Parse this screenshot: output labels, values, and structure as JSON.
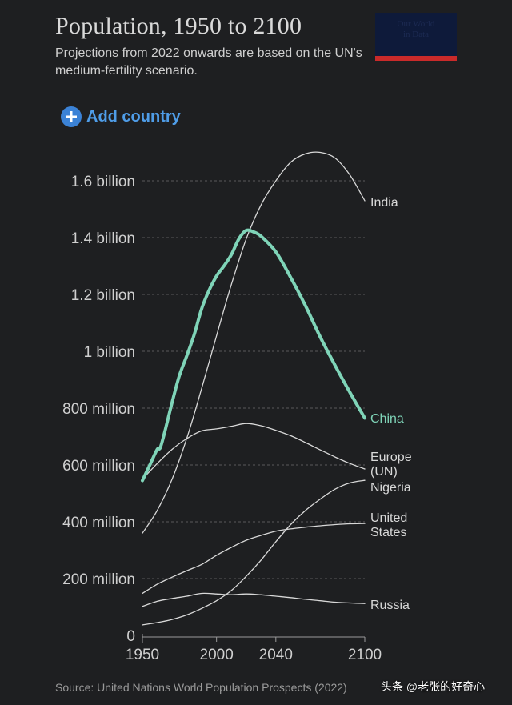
{
  "header": {
    "title": "Population, 1950 to 2100",
    "subtitle": "Projections from 2022 onwards are based on the UN's medium-fertility scenario."
  },
  "logo": {
    "text": "Our World in Data",
    "bg_color": "#0e1a3a",
    "bar_color": "#c92a2a"
  },
  "controls": {
    "add_country_label": "Add country",
    "icon": "plus-circle-icon",
    "color": "#4f9de8"
  },
  "footer": {
    "source": "Source: United Nations World Population Prospects (2022)",
    "watermark": "头条 @老张的好奇心"
  },
  "chart_data": {
    "type": "line",
    "title": "Population, 1950 to 2100",
    "xlabel": "",
    "ylabel": "",
    "xlim": [
      1950,
      2100
    ],
    "ylim": [
      0,
      1700000000
    ],
    "x_ticks": [
      1950,
      2000,
      2040,
      2100
    ],
    "x_tick_labels": [
      "1950",
      "2000",
      "2040",
      "2100"
    ],
    "y_ticks": [
      0,
      200000000,
      400000000,
      600000000,
      800000000,
      1000000000,
      1200000000,
      1400000000,
      1600000000
    ],
    "y_tick_labels": [
      "0",
      "200 million",
      "400 million",
      "600 million",
      "800 million",
      "1 billion",
      "1.2 billion",
      "1.4 billion",
      "1.6 billion"
    ],
    "grid": "horizontal dashed",
    "line_color": "#d8d8d8",
    "highlight_color": "#7fd4b8",
    "series": [
      {
        "name": "India",
        "label_lines": [
          "India"
        ],
        "highlight": false,
        "points": [
          [
            1950,
            360000000
          ],
          [
            1960,
            440000000
          ],
          [
            1970,
            550000000
          ],
          [
            1980,
            695000000
          ],
          [
            1990,
            870000000
          ],
          [
            2000,
            1055000000
          ],
          [
            2010,
            1235000000
          ],
          [
            2020,
            1395000000
          ],
          [
            2030,
            1515000000
          ],
          [
            2040,
            1600000000
          ],
          [
            2050,
            1665000000
          ],
          [
            2060,
            1695000000
          ],
          [
            2070,
            1700000000
          ],
          [
            2080,
            1680000000
          ],
          [
            2090,
            1620000000
          ],
          [
            2100,
            1530000000
          ]
        ]
      },
      {
        "name": "China",
        "label_lines": [
          "China"
        ],
        "highlight": true,
        "points": [
          [
            1950,
            545000000
          ],
          [
            1955,
            600000000
          ],
          [
            1960,
            655000000
          ],
          [
            1962,
            660000000
          ],
          [
            1965,
            715000000
          ],
          [
            1970,
            820000000
          ],
          [
            1975,
            915000000
          ],
          [
            1980,
            985000000
          ],
          [
            1985,
            1060000000
          ],
          [
            1990,
            1150000000
          ],
          [
            1995,
            1215000000
          ],
          [
            2000,
            1265000000
          ],
          [
            2005,
            1300000000
          ],
          [
            2010,
            1340000000
          ],
          [
            2015,
            1395000000
          ],
          [
            2020,
            1425000000
          ],
          [
            2025,
            1420000000
          ],
          [
            2030,
            1405000000
          ],
          [
            2040,
            1350000000
          ],
          [
            2050,
            1260000000
          ],
          [
            2060,
            1160000000
          ],
          [
            2070,
            1050000000
          ],
          [
            2080,
            950000000
          ],
          [
            2090,
            855000000
          ],
          [
            2100,
            765000000
          ]
        ]
      },
      {
        "name": "Europe (UN)",
        "label_lines": [
          "Europe",
          "(UN)"
        ],
        "highlight": false,
        "points": [
          [
            1950,
            550000000
          ],
          [
            1960,
            605000000
          ],
          [
            1970,
            655000000
          ],
          [
            1980,
            693000000
          ],
          [
            1990,
            720000000
          ],
          [
            2000,
            727000000
          ],
          [
            2010,
            736000000
          ],
          [
            2020,
            746000000
          ],
          [
            2030,
            738000000
          ],
          [
            2040,
            722000000
          ],
          [
            2050,
            703000000
          ],
          [
            2060,
            679000000
          ],
          [
            2070,
            653000000
          ],
          [
            2080,
            628000000
          ],
          [
            2090,
            605000000
          ],
          [
            2100,
            586000000
          ]
        ]
      },
      {
        "name": "Nigeria",
        "label_lines": [
          "Nigeria"
        ],
        "highlight": false,
        "points": [
          [
            1950,
            37000000
          ],
          [
            1960,
            45000000
          ],
          [
            1970,
            56000000
          ],
          [
            1980,
            72000000
          ],
          [
            1990,
            95000000
          ],
          [
            2000,
            122000000
          ],
          [
            2010,
            158000000
          ],
          [
            2020,
            208000000
          ],
          [
            2030,
            265000000
          ],
          [
            2040,
            330000000
          ],
          [
            2050,
            390000000
          ],
          [
            2060,
            440000000
          ],
          [
            2070,
            480000000
          ],
          [
            2080,
            515000000
          ],
          [
            2090,
            537000000
          ],
          [
            2100,
            546000000
          ]
        ]
      },
      {
        "name": "United States",
        "label_lines": [
          "United",
          "States"
        ],
        "highlight": false,
        "points": [
          [
            1950,
            148000000
          ],
          [
            1960,
            180000000
          ],
          [
            1970,
            205000000
          ],
          [
            1980,
            228000000
          ],
          [
            1990,
            250000000
          ],
          [
            2000,
            282000000
          ],
          [
            2010,
            310000000
          ],
          [
            2020,
            335000000
          ],
          [
            2030,
            352000000
          ],
          [
            2040,
            367000000
          ],
          [
            2050,
            375000000
          ],
          [
            2060,
            381000000
          ],
          [
            2070,
            386000000
          ],
          [
            2080,
            390000000
          ],
          [
            2090,
            393000000
          ],
          [
            2100,
            394000000
          ]
        ]
      },
      {
        "name": "Russia",
        "label_lines": [
          "Russia"
        ],
        "highlight": false,
        "points": [
          [
            1950,
            102000000
          ],
          [
            1960,
            120000000
          ],
          [
            1970,
            130000000
          ],
          [
            1980,
            138000000
          ],
          [
            1990,
            148000000
          ],
          [
            2000,
            146000000
          ],
          [
            2010,
            143000000
          ],
          [
            2020,
            146000000
          ],
          [
            2030,
            143000000
          ],
          [
            2040,
            138000000
          ],
          [
            2050,
            133000000
          ],
          [
            2060,
            127000000
          ],
          [
            2070,
            122000000
          ],
          [
            2080,
            117000000
          ],
          [
            2090,
            114000000
          ],
          [
            2100,
            112000000
          ]
        ]
      }
    ]
  }
}
